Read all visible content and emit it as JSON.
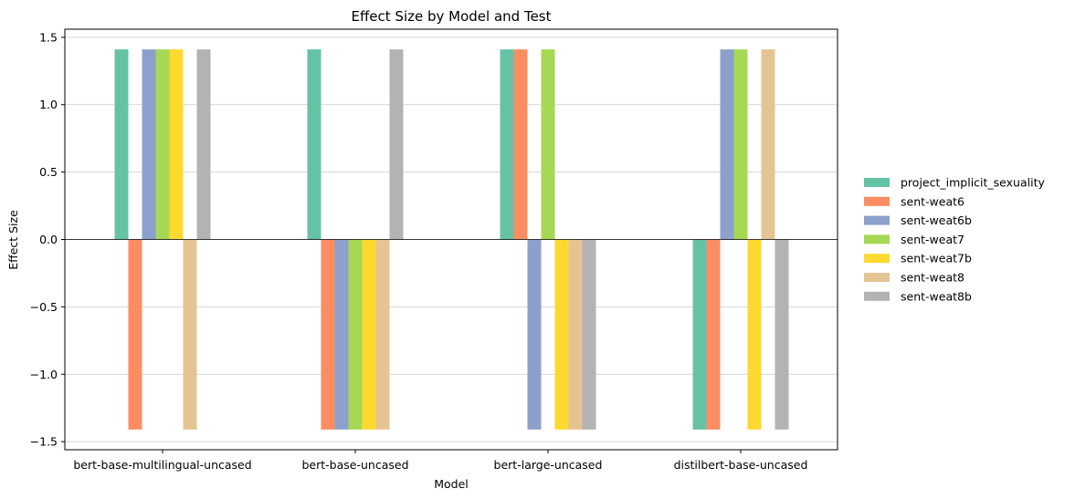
{
  "chart_data": {
    "type": "bar",
    "title": "Effect Size by Model and Test",
    "xlabel": "Model",
    "ylabel": "Effect Size",
    "ylim": [
      -1.56,
      1.56
    ],
    "yticks": [
      1.5,
      1.0,
      0.5,
      0.0,
      -0.5,
      -1.0,
      -1.5
    ],
    "ytick_labels": [
      "1.5",
      "1.0",
      "0.5",
      "0.0",
      "−0.5",
      "−1.0",
      "−1.5"
    ],
    "grid": "horizontal",
    "legend_position": "right",
    "categories": [
      "bert-base-multilingual-uncased",
      "bert-base-uncased",
      "bert-large-uncased",
      "distilbert-base-uncased"
    ],
    "series": [
      {
        "name": "project_implicit_sexuality",
        "color": "#66c2a5",
        "values": [
          1.41,
          1.41,
          1.41,
          -1.41
        ]
      },
      {
        "name": "sent-weat6",
        "color": "#fc8d62",
        "values": [
          -1.41,
          -1.41,
          1.41,
          -1.41
        ]
      },
      {
        "name": "sent-weat6b",
        "color": "#8da0cb",
        "values": [
          1.41,
          -1.41,
          -1.41,
          1.41
        ]
      },
      {
        "name": "sent-weat7",
        "color": "#a6d854",
        "values": [
          1.41,
          -1.41,
          1.41,
          1.41
        ]
      },
      {
        "name": "sent-weat7b",
        "color": "#ffd92f",
        "values": [
          1.41,
          -1.41,
          -1.41,
          -1.41
        ]
      },
      {
        "name": "sent-weat8",
        "color": "#e5c494",
        "values": [
          -1.41,
          -1.41,
          -1.41,
          1.41
        ]
      },
      {
        "name": "sent-weat8b",
        "color": "#b3b3b3",
        "values": [
          1.41,
          1.41,
          -1.41,
          -1.41
        ]
      }
    ]
  }
}
